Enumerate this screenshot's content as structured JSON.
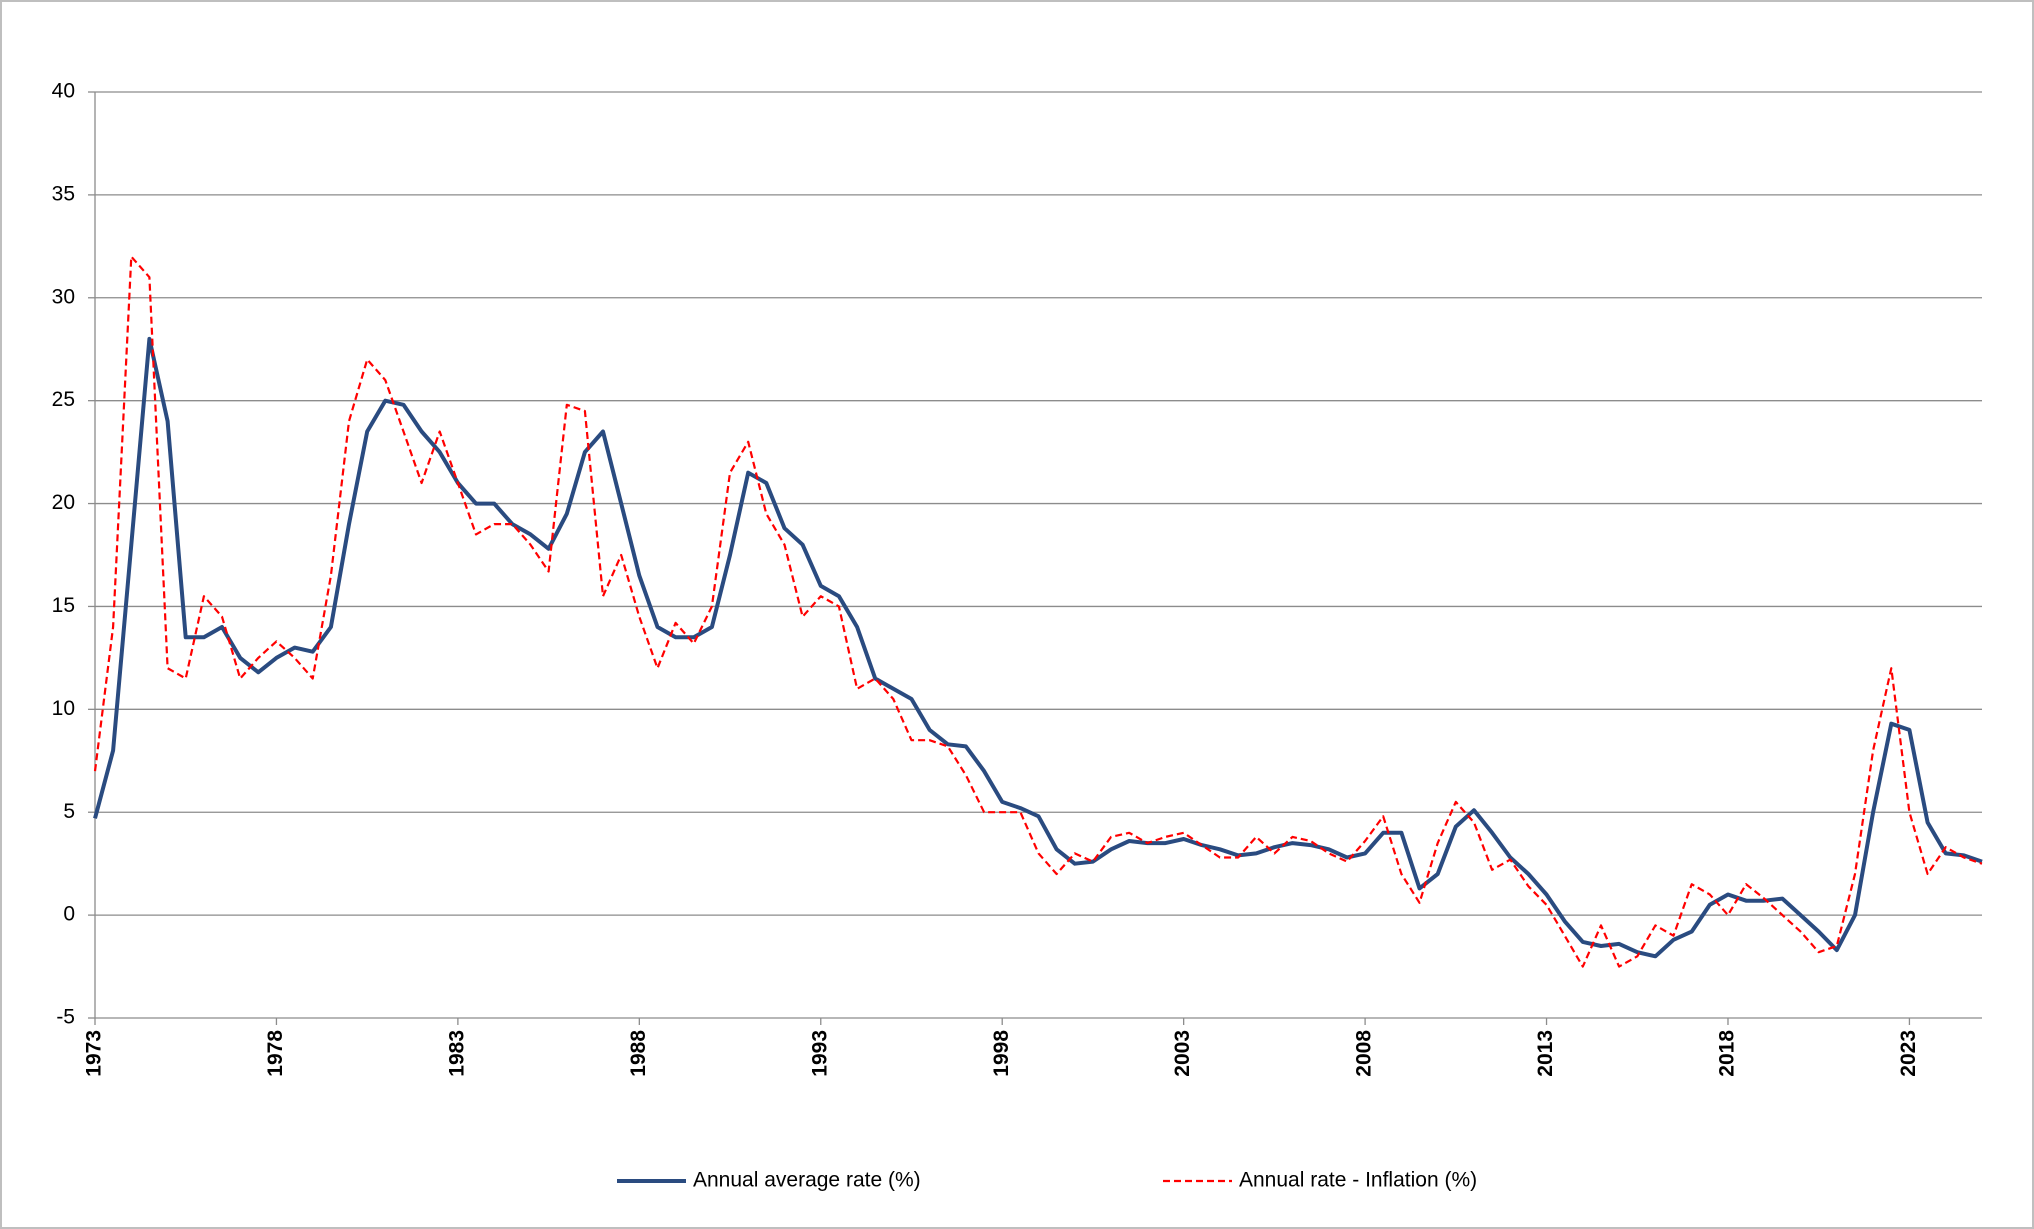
{
  "chart_data": {
    "type": "line",
    "x": [
      1973,
      1973.5,
      1974,
      1974.5,
      1975,
      1975.5,
      1976,
      1976.5,
      1977,
      1977.5,
      1978,
      1978.5,
      1979,
      1979.5,
      1980,
      1980.5,
      1981,
      1981.5,
      1982,
      1982.5,
      1983,
      1983.5,
      1984,
      1984.5,
      1985,
      1985.5,
      1986,
      1986.5,
      1987,
      1987.5,
      1988,
      1988.5,
      1989,
      1989.5,
      1990,
      1990.5,
      1991,
      1991.5,
      1992,
      1992.5,
      1993,
      1993.5,
      1994,
      1994.5,
      1995,
      1995.5,
      1996,
      1996.5,
      1997,
      1997.5,
      1998,
      1998.5,
      1999,
      1999.5,
      2000,
      2000.5,
      2001,
      2001.5,
      2002,
      2002.5,
      2003,
      2003.5,
      2004,
      2004.5,
      2005,
      2005.5,
      2006,
      2006.5,
      2007,
      2007.5,
      2008,
      2008.5,
      2009,
      2009.5,
      2010,
      2010.5,
      2011,
      2011.5,
      2012,
      2012.5,
      2013,
      2013.5,
      2014,
      2014.5,
      2015,
      2015.5,
      2016,
      2016.5,
      2017,
      2017.5,
      2018,
      2018.5,
      2019,
      2019.5,
      2020,
      2020.5,
      2021,
      2021.5,
      2022,
      2022.5,
      2023,
      2023.5,
      2024,
      2024.5,
      2025
    ],
    "series": [
      {
        "name": "Annual average rate (%)",
        "color": "#2a4b80",
        "dashed": false,
        "values": [
          4.7,
          8,
          18,
          28,
          24,
          13.5,
          13.5,
          14,
          12.5,
          11.8,
          12.5,
          13,
          12.8,
          14,
          19,
          23.5,
          25,
          24.8,
          23.5,
          22.5,
          21,
          20,
          20,
          19,
          18.5,
          17.8,
          19.5,
          22.5,
          23.5,
          20,
          16.5,
          14,
          13.5,
          13.5,
          14,
          17.5,
          21.5,
          21,
          18.8,
          18,
          16,
          15.5,
          14,
          11.5,
          11,
          10.5,
          9,
          8.3,
          8.2,
          7,
          5.5,
          5.2,
          4.8,
          3.2,
          2.5,
          2.6,
          3.2,
          3.6,
          3.5,
          3.5,
          3.7,
          3.4,
          3.2,
          2.9,
          3,
          3.3,
          3.5,
          3.4,
          3.2,
          2.8,
          3,
          4,
          4,
          1.3,
          2,
          4.3,
          5.1,
          4,
          2.8,
          2,
          1,
          -0.3,
          -1.3,
          -1.5,
          -1.4,
          -1.8,
          -2,
          -1.2,
          -0.8,
          0.5,
          1,
          0.7,
          0.7,
          0.8,
          0,
          -0.8,
          -1.7,
          0,
          5,
          9.3,
          9,
          4.5,
          3,
          2.9,
          2.6
        ]
      },
      {
        "name": "Annual rate - Inflation (%)",
        "color": "#ff0000",
        "dashed": true,
        "values": [
          7,
          14,
          32,
          31,
          12,
          11.5,
          15.5,
          14.5,
          11.5,
          12.5,
          13.3,
          12.5,
          11.5,
          16.5,
          24,
          27,
          26,
          23.5,
          21,
          23.5,
          21,
          18.5,
          19,
          19,
          18,
          16.7,
          24.8,
          24.5,
          15.5,
          17.5,
          14.5,
          12,
          14.2,
          13.2,
          15,
          21.5,
          23,
          19.5,
          18,
          14.5,
          15.5,
          15,
          11,
          11.5,
          10.5,
          8.5,
          8.5,
          8.2,
          6.8,
          5,
          5,
          5,
          3,
          2,
          3,
          2.6,
          3.8,
          4,
          3.5,
          3.8,
          4,
          3.4,
          2.8,
          2.8,
          3.8,
          3,
          3.8,
          3.6,
          3,
          2.6,
          3.6,
          4.8,
          2,
          0.6,
          3.5,
          5.5,
          4.5,
          2.2,
          2.7,
          1.4,
          0.5,
          -1,
          -2.5,
          -0.5,
          -2.5,
          -2,
          -0.5,
          -1,
          1.5,
          1,
          0,
          1.5,
          0.8,
          0,
          -0.8,
          -1.8,
          -1.5,
          2,
          8,
          12,
          5,
          2,
          3.3,
          2.8,
          2.5
        ]
      }
    ],
    "xlim": [
      1973,
      2025
    ],
    "xticks": [
      1973,
      1978,
      1983,
      1988,
      1993,
      1998,
      2003,
      2008,
      2013,
      2018,
      2023
    ],
    "ylim": [
      -5,
      40
    ],
    "yticks": [
      -5,
      0,
      5,
      10,
      15,
      20,
      25,
      30,
      35,
      40
    ],
    "grid": true,
    "legend": "bottom"
  }
}
